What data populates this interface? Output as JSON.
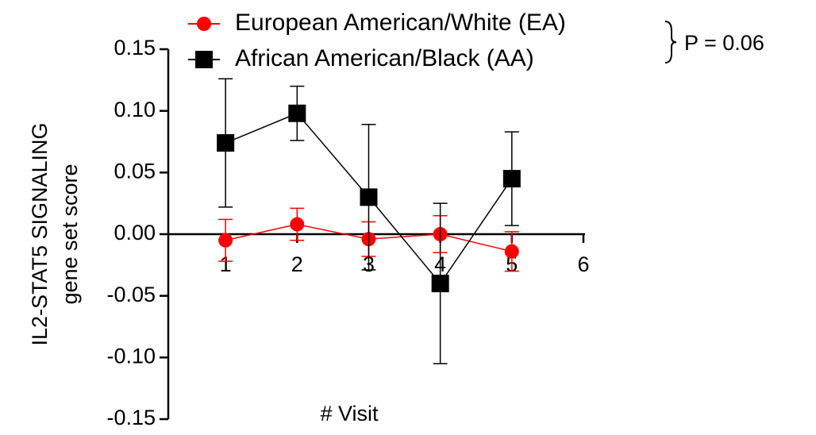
{
  "chart_data": {
    "type": "line",
    "y_label": [
      "IL2-STAT5 SIGNALING",
      "gene set score"
    ],
    "x_label": "# Visit",
    "annotation": "P = 0.06",
    "x": [
      1,
      2,
      3,
      4,
      5
    ],
    "series": [
      {
        "name": "European American/White (EA)",
        "color": "#ff0000",
        "marker": "circle",
        "values": [
          -0.005,
          0.008,
          -0.004,
          0.0,
          -0.014
        ],
        "errors": [
          0.017,
          0.013,
          0.014,
          0.015,
          0.016
        ]
      },
      {
        "name": "African American/Black (AA)",
        "color": "#000000",
        "marker": "square",
        "values": [
          0.074,
          0.098,
          0.03,
          -0.04,
          0.045
        ],
        "errors": [
          0.052,
          0.022,
          0.059,
          0.065,
          0.038
        ]
      }
    ],
    "xlim": [
      0.2,
      6
    ],
    "xticks": [
      1,
      2,
      3,
      4,
      5,
      6
    ],
    "ylim": [
      -0.15,
      0.15
    ],
    "yticks": [
      -0.15,
      {
        "value": -0.1,
        "label": "-0.10"
      },
      -0.05,
      {
        "value": 0,
        "label": "0.00"
      },
      0.05,
      {
        "value": 0.1,
        "label": "0.10"
      },
      0.15
    ]
  }
}
